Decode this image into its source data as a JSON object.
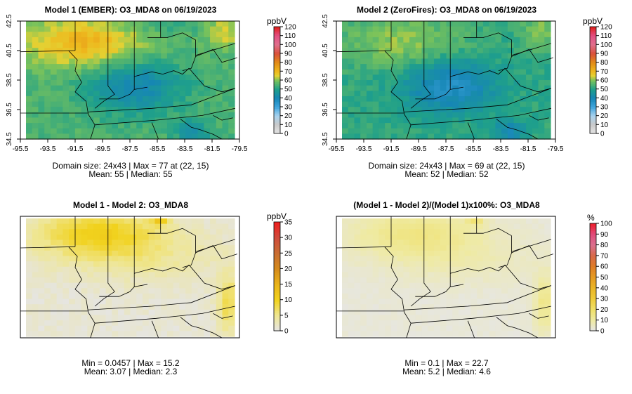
{
  "chart_data": [
    {
      "type": "heatmap",
      "title": "Model 1 (EMBER): O3_MDA8 on 06/19/2023",
      "xticks": [
        "-95.5",
        "-93.5",
        "-91.5",
        "-89.5",
        "-87.5",
        "-85.5",
        "-83.5",
        "-81.5",
        "-79.5"
      ],
      "yticks": [
        "34.5",
        "36.5",
        "38.5",
        "40.5",
        "42.5"
      ],
      "xlim": [
        -95.5,
        -79.5
      ],
      "ylim": [
        34.5,
        42.5
      ],
      "grid": false,
      "legend": {
        "unit": "ppbV",
        "ticks": [
          "0",
          "10",
          "20",
          "30",
          "40",
          "50",
          "60",
          "70",
          "80",
          "90",
          "100",
          "110",
          "120"
        ],
        "min": 0,
        "max": 120
      },
      "caption1": "Domain size: 24x43 | Max = 77 at (22, 15)",
      "caption2": "Mean: 55 |  Median: 55",
      "mean": 55,
      "max": 77
    },
    {
      "type": "heatmap",
      "title": "Model 2 (ZeroFires): O3_MDA8 on 06/19/2023",
      "xticks": [
        "-95.5",
        "-93.5",
        "-91.5",
        "-89.5",
        "-87.5",
        "-85.5",
        "-83.5",
        "-81.5",
        "-79.5"
      ],
      "yticks": [
        "34.5",
        "36.5",
        "38.5",
        "40.5",
        "42.5"
      ],
      "xlim": [
        -95.5,
        -79.5
      ],
      "ylim": [
        34.5,
        42.5
      ],
      "grid": false,
      "legend": {
        "unit": "ppbV",
        "ticks": [
          "0",
          "10",
          "20",
          "30",
          "40",
          "50",
          "60",
          "70",
          "80",
          "90",
          "100",
          "110",
          "120"
        ],
        "min": 0,
        "max": 120
      },
      "caption1": "Domain size: 24x43 | Max = 69 at (22, 15)",
      "caption2": "Mean: 52 |  Median: 52",
      "mean": 52,
      "max": 69
    },
    {
      "type": "heatmap",
      "title": "Model 1 - Model 2: O3_MDA8",
      "xticks": [],
      "yticks": [],
      "grid": false,
      "legend": {
        "unit": "ppbV",
        "ticks": [
          "0",
          "5",
          "10",
          "15",
          "20",
          "25",
          "30",
          "35"
        ],
        "min": 0,
        "max": 35
      },
      "caption1": "Min = 0.0457 | Max = 15.2",
      "caption2": "Mean: 3.07 |  Median: 2.3",
      "min": 0.0457,
      "max": 15.2,
      "mean": 3.07,
      "median": 2.3
    },
    {
      "type": "heatmap",
      "title": "(Model 1 - Model 2)/(Model 1)x100%: O3_MDA8",
      "xticks": [],
      "yticks": [],
      "grid": false,
      "legend": {
        "unit": "%",
        "ticks": [
          "0",
          "10",
          "20",
          "30",
          "40",
          "50",
          "60",
          "70",
          "80",
          "90",
          "100"
        ],
        "min": 0,
        "max": 100
      },
      "caption1": "Min = 0.1 | Max = 22.7",
      "caption2": "Mean: 5.2 |  Median: 4.6",
      "min": 0.1,
      "max": 22.7,
      "mean": 5.2,
      "median": 4.6
    }
  ]
}
